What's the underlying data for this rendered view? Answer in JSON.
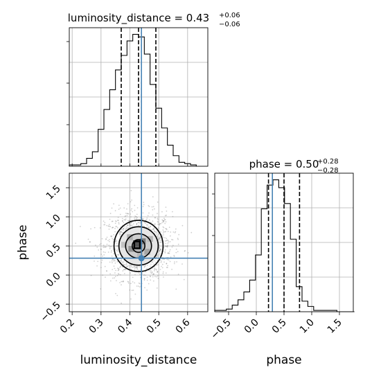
{
  "chart_data": {
    "type": "corner",
    "parameters": [
      "luminosity_distance",
      "phase"
    ],
    "truths": {
      "luminosity_distance": 0.44,
      "phase": 0.29
    },
    "panels": [
      {
        "id": "hist-luminosity_distance",
        "type": "histogram",
        "title_label": "luminosity_distance = 0.43",
        "title_sup": "+0.06",
        "title_sub": "−0.06",
        "xlim": [
          0.19,
          0.67
        ],
        "ylim": [
          0,
          1.05
        ],
        "bins": {
          "start": 0.19,
          "width": 0.02,
          "counts": [
            0.01,
            0.01,
            0.02,
            0.06,
            0.11,
            0.28,
            0.43,
            0.58,
            0.73,
            0.84,
            0.95,
            1.0,
            0.98,
            0.85,
            0.62,
            0.44,
            0.29,
            0.16,
            0.08,
            0.03,
            0.02,
            0.01
          ]
        },
        "quantile_lines": [
          0.37,
          0.43,
          0.49
        ],
        "truth": 0.44,
        "gridlines": true
      },
      {
        "id": "hist-phase",
        "type": "histogram",
        "title_label": "phase = 0.50",
        "title_sup": "+0.28",
        "title_sub": "−0.28",
        "xlim": [
          -0.75,
          1.75
        ],
        "ylim": [
          0,
          1.05
        ],
        "bins": {
          "start": -0.75,
          "width": 0.105,
          "counts": [
            0.01,
            0.01,
            0.02,
            0.05,
            0.09,
            0.15,
            0.24,
            0.43,
            0.78,
            0.96,
            1.0,
            0.94,
            0.82,
            0.55,
            0.19,
            0.08,
            0.04,
            0.01,
            0.01,
            0.01,
            0.01,
            0.0,
            0.0,
            0.0
          ]
        },
        "quantile_lines": [
          0.22,
          0.5,
          0.78
        ],
        "truth": 0.29,
        "gridlines": true,
        "xticks": [
          -0.5,
          0.0,
          0.5,
          1.0,
          1.5
        ],
        "xlabel": "phase"
      },
      {
        "id": "scatter-luminosity_distance-phase",
        "type": "2d-density",
        "xlim": [
          0.19,
          0.67
        ],
        "ylim": [
          -0.63,
          1.75
        ],
        "xticks": [
          0.2,
          0.3,
          0.4,
          0.5,
          0.6
        ],
        "yticks": [
          -0.5,
          0.0,
          0.5,
          1.0,
          1.5
        ],
        "xlabel": "luminosity_distance",
        "ylabel": "phase",
        "center": [
          0.43,
          0.5
        ],
        "contours": [
          {
            "level": 0.5,
            "half_widths": [
              0.022,
              0.11
            ]
          },
          {
            "level": 0.8,
            "half_widths": [
              0.045,
              0.21
            ]
          },
          {
            "level": 0.95,
            "half_widths": [
              0.068,
              0.33
            ]
          },
          {
            "level": 0.99,
            "half_widths": [
              0.085,
              0.44
            ]
          }
        ],
        "density_blocks": [
          {
            "x": 0.425,
            "y": 0.53,
            "shade": 0.85
          },
          {
            "x": 0.445,
            "y": 0.58,
            "shade": 0.65
          },
          {
            "x": 0.405,
            "y": 0.45,
            "shade": 0.55
          },
          {
            "x": 0.46,
            "y": 0.4,
            "shade": 0.45
          },
          {
            "x": 0.4,
            "y": 0.65,
            "shade": 0.4
          },
          {
            "x": 0.47,
            "y": 0.62,
            "shade": 0.35
          },
          {
            "x": 0.435,
            "y": 0.35,
            "shade": 0.35
          },
          {
            "x": 0.38,
            "y": 0.52,
            "shade": 0.3
          }
        ],
        "truth": [
          0.44,
          0.29
        ],
        "gridlines": true
      }
    ]
  }
}
